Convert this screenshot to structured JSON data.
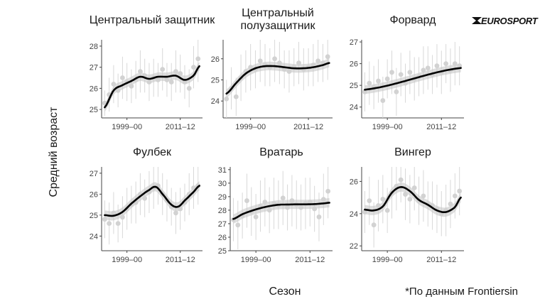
{
  "figure": {
    "y_axis_title": "Средний возраст",
    "x_axis_title": "Сезон",
    "source_note": "*По данным Frontiersin",
    "logo_text": "EUROSPORT",
    "colors": {
      "trend_line": "#000000",
      "ribbon": "#c8c8c8",
      "points": "#d2d2d2",
      "error_bars": "#d8d8d8",
      "axis": "#444444"
    }
  },
  "chart_data": [
    {
      "type": "scatter",
      "title": [
        "Центральный защитник"
      ],
      "x": [
        1994,
        1995,
        1996,
        1997,
        1998,
        1999,
        2000,
        2001,
        2002,
        2003,
        2004,
        2005,
        2006,
        2007,
        2008,
        2009,
        2010,
        2011,
        2012,
        2013,
        2014,
        2015
      ],
      "y": [
        25.3,
        25.7,
        26.2,
        25.9,
        26.5,
        26.3,
        26.1,
        26.4,
        26.8,
        26.6,
        26.3,
        26.5,
        26.4,
        26.9,
        26.4,
        26.3,
        26.8,
        26.7,
        26.3,
        26.0,
        27.0,
        27.4
      ],
      "err": [
        0.6,
        0.8,
        0.9,
        0.8,
        1.0,
        0.9,
        0.8,
        0.9,
        1.0,
        0.8,
        0.9,
        0.9,
        0.8,
        1.0,
        0.8,
        0.9,
        1.0,
        0.9,
        0.8,
        0.9,
        1.0,
        1.1
      ],
      "trend": [
        [
          1994,
          25.1
        ],
        [
          1996,
          25.9
        ],
        [
          1998,
          26.15
        ],
        [
          2000,
          26.35
        ],
        [
          2002,
          26.55
        ],
        [
          2004,
          26.45
        ],
        [
          2006,
          26.55
        ],
        [
          2008,
          26.55
        ],
        [
          2010,
          26.6
        ],
        [
          2012,
          26.4
        ],
        [
          2014,
          26.6
        ],
        [
          2015.3,
          27.05
        ]
      ],
      "ylim": [
        24.6,
        28.3
      ],
      "yticks": [
        25,
        26,
        27,
        28
      ],
      "xlim": [
        1993.3,
        2016
      ],
      "xticks": [
        1999,
        2011
      ],
      "xtick_labels": [
        "1999–00",
        "2011–12"
      ]
    },
    {
      "type": "scatter",
      "title": [
        "Центральный",
        "полузащитник"
      ],
      "x": [
        1994,
        1995,
        1996,
        1997,
        1998,
        1999,
        2000,
        2001,
        2002,
        2003,
        2004,
        2005,
        2006,
        2007,
        2008,
        2009,
        2010,
        2011,
        2012,
        2013,
        2014,
        2015
      ],
      "y": [
        24.1,
        24.6,
        24.2,
        25.1,
        25.4,
        25.6,
        25.5,
        25.9,
        25.7,
        25.6,
        26.0,
        25.8,
        25.5,
        25.4,
        25.6,
        25.8,
        25.5,
        25.6,
        25.7,
        25.9,
        25.8,
        26.1
      ],
      "err": [
        0.9,
        1.0,
        0.9,
        1.1,
        1.0,
        1.1,
        0.9,
        1.0,
        1.0,
        0.9,
        1.1,
        1.0,
        0.9,
        1.0,
        0.9,
        1.0,
        1.0,
        0.9,
        1.0,
        1.0,
        0.9,
        1.1
      ],
      "trend": [
        [
          1994,
          24.35
        ],
        [
          1996,
          24.85
        ],
        [
          1998,
          25.3
        ],
        [
          2000,
          25.55
        ],
        [
          2002,
          25.65
        ],
        [
          2004,
          25.65
        ],
        [
          2006,
          25.6
        ],
        [
          2008,
          25.55
        ],
        [
          2010,
          25.55
        ],
        [
          2012,
          25.6
        ],
        [
          2014,
          25.7
        ],
        [
          2015.3,
          25.8
        ]
      ],
      "ylim": [
        23.2,
        26.9
      ],
      "yticks": [
        24,
        25,
        26
      ],
      "xlim": [
        1993.3,
        2016
      ],
      "xticks": [
        1999,
        2011
      ],
      "xtick_labels": [
        "1999–00",
        "2011–12"
      ]
    },
    {
      "type": "scatter",
      "title": [
        "Форвард"
      ],
      "x": [
        1994,
        1995,
        1996,
        1997,
        1998,
        1999,
        2000,
        2001,
        2002,
        2003,
        2004,
        2005,
        2006,
        2007,
        2008,
        2009,
        2010,
        2011,
        2012,
        2013,
        2014,
        2015
      ],
      "y": [
        24.7,
        25.1,
        24.9,
        25.2,
        24.3,
        25.3,
        25.6,
        24.7,
        25.5,
        25.1,
        25.6,
        25.3,
        25.4,
        25.7,
        25.8,
        25.5,
        25.9,
        25.6,
        26.0,
        25.7,
        26.0,
        25.9
      ],
      "err": [
        0.9,
        1.0,
        1.0,
        1.0,
        1.1,
        0.9,
        1.0,
        1.1,
        1.0,
        0.9,
        1.0,
        1.0,
        0.9,
        1.1,
        1.0,
        0.9,
        1.0,
        1.0,
        0.9,
        1.0,
        1.0,
        0.9
      ],
      "trend": [
        [
          1994,
          24.8
        ],
        [
          2015.3,
          25.8
        ]
      ],
      "ylim": [
        23.5,
        27.1
      ],
      "yticks": [
        24,
        25,
        26,
        27
      ],
      "xlim": [
        1993.3,
        2016
      ],
      "xticks": [
        1999,
        2011
      ],
      "xtick_labels": [
        "1999–00",
        "2011–12"
      ]
    },
    {
      "type": "scatter",
      "title": [
        "Фулбек"
      ],
      "x": [
        1994,
        1995,
        1996,
        1997,
        1998,
        1999,
        2000,
        2001,
        2002,
        2003,
        2004,
        2005,
        2006,
        2007,
        2008,
        2009,
        2010,
        2011,
        2012,
        2013,
        2014,
        2015
      ],
      "y": [
        24.8,
        24.6,
        25.1,
        24.6,
        24.9,
        25.3,
        25.5,
        25.6,
        26.0,
        25.8,
        26.1,
        26.3,
        26.4,
        26.0,
        25.7,
        25.4,
        25.1,
        25.3,
        25.6,
        26.0,
        26.3,
        26.4
      ],
      "err": [
        0.9,
        1.0,
        1.0,
        0.9,
        1.0,
        1.0,
        0.9,
        1.0,
        1.0,
        0.9,
        1.0,
        1.0,
        0.9,
        1.0,
        1.0,
        0.9,
        1.0,
        1.0,
        0.9,
        1.0,
        1.0,
        0.9
      ],
      "trend": [
        [
          1994,
          25.0
        ],
        [
          1996,
          24.97
        ],
        [
          1998,
          25.15
        ],
        [
          2000,
          25.55
        ],
        [
          2002,
          25.9
        ],
        [
          2004,
          26.2
        ],
        [
          2005.5,
          26.35
        ],
        [
          2007,
          26.0
        ],
        [
          2009,
          25.5
        ],
        [
          2010.5,
          25.4
        ],
        [
          2012,
          25.7
        ],
        [
          2014,
          26.1
        ],
        [
          2015.3,
          26.4
        ]
      ],
      "ylim": [
        23.3,
        27.3
      ],
      "yticks": [
        24,
        25,
        26,
        27
      ],
      "xlim": [
        1993.3,
        2016
      ],
      "xticks": [
        1999,
        2011
      ],
      "xtick_labels": [
        "1999–00",
        "2011–12"
      ]
    },
    {
      "type": "scatter",
      "title": [
        "Вратарь"
      ],
      "x": [
        1994,
        1995,
        1996,
        1997,
        1998,
        1999,
        2000,
        2001,
        2002,
        2003,
        2004,
        2005,
        2006,
        2007,
        2008,
        2009,
        2010,
        2011,
        2012,
        2013,
        2014,
        2015
      ],
      "y": [
        27.3,
        26.9,
        27.6,
        28.7,
        27.9,
        27.5,
        28.3,
        28.6,
        28.0,
        28.5,
        28.4,
        28.9,
        28.2,
        28.7,
        28.4,
        28.2,
        28.5,
        28.6,
        28.1,
        27.5,
        28.8,
        29.4
      ],
      "err": [
        1.6,
        1.8,
        1.7,
        2.0,
        1.8,
        1.7,
        1.9,
        1.8,
        1.7,
        1.9,
        1.8,
        2.0,
        1.7,
        1.9,
        1.8,
        1.7,
        1.9,
        1.8,
        1.7,
        1.8,
        1.9,
        2.0
      ],
      "trend": [
        [
          1994,
          27.35
        ],
        [
          1996,
          27.7
        ],
        [
          1998,
          27.95
        ],
        [
          2000,
          28.15
        ],
        [
          2002,
          28.3
        ],
        [
          2004,
          28.4
        ],
        [
          2006,
          28.42
        ],
        [
          2008,
          28.43
        ],
        [
          2010,
          28.43
        ],
        [
          2012,
          28.45
        ],
        [
          2014,
          28.5
        ],
        [
          2015.3,
          28.55
        ]
      ],
      "ylim": [
        25,
        31.2
      ],
      "yticks": [
        25,
        26,
        27,
        28,
        29,
        30,
        31
      ],
      "xlim": [
        1993.3,
        2016
      ],
      "xticks": [
        1999,
        2011
      ],
      "xtick_labels": [
        "1999–00",
        "2011–12"
      ]
    },
    {
      "type": "scatter",
      "title": [
        "Вингер"
      ],
      "x": [
        1994,
        1995,
        1996,
        1997,
        1998,
        1999,
        2000,
        2001,
        2002,
        2003,
        2004,
        2005,
        2006,
        2007,
        2008,
        2009,
        2010,
        2011,
        2012,
        2013,
        2014,
        2015
      ],
      "y": [
        24.1,
        24.8,
        23.3,
        24.5,
        24.9,
        24.2,
        25.3,
        25.7,
        26.1,
        25.2,
        24.9,
        25.6,
        24.8,
        25.1,
        24.6,
        24.5,
        24.3,
        24.0,
        24.2,
        24.6,
        25.1,
        25.4
      ],
      "err": [
        1.3,
        1.5,
        1.4,
        1.6,
        1.5,
        1.4,
        1.6,
        1.5,
        1.4,
        1.6,
        1.5,
        1.4,
        1.5,
        1.6,
        1.4,
        1.5,
        1.5,
        1.4,
        1.6,
        1.5,
        1.4,
        1.5
      ],
      "trend": [
        [
          1994,
          24.25
        ],
        [
          1996,
          24.2
        ],
        [
          1998,
          24.45
        ],
        [
          2000,
          25.3
        ],
        [
          2002,
          25.65
        ],
        [
          2004,
          25.4
        ],
        [
          2006,
          24.85
        ],
        [
          2008,
          24.55
        ],
        [
          2010,
          24.2
        ],
        [
          2012,
          24.1
        ],
        [
          2014,
          24.4
        ],
        [
          2015.3,
          25.0
        ]
      ],
      "ylim": [
        21.7,
        26.9
      ],
      "yticks": [
        22,
        24,
        26
      ],
      "xlim": [
        1993.3,
        2016
      ],
      "xticks": [
        1999,
        2011
      ],
      "xtick_labels": [
        "1999–00",
        "2011–12"
      ]
    }
  ]
}
